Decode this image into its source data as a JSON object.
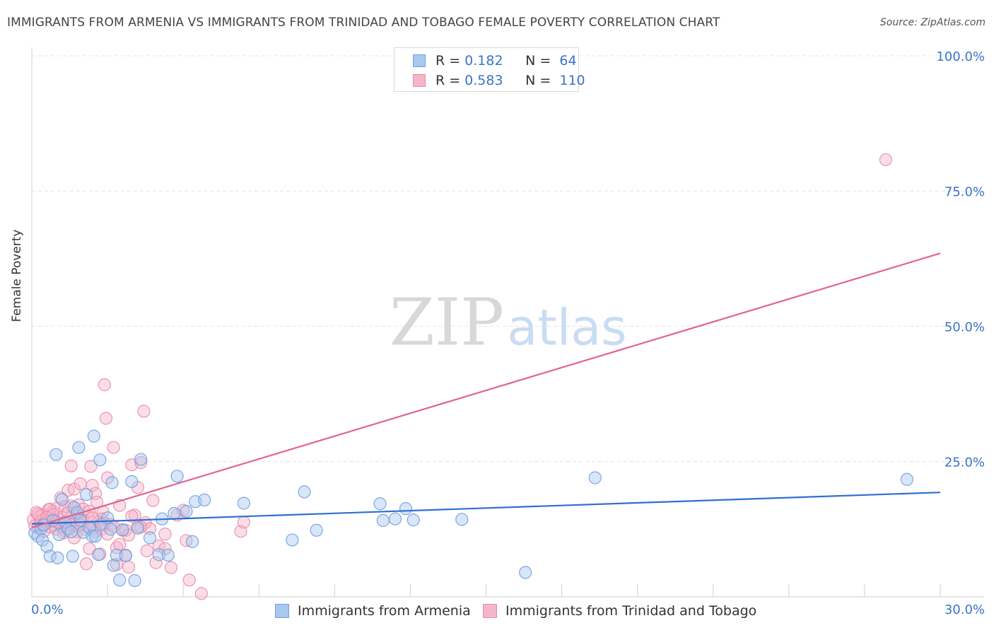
{
  "header": {
    "title": "IMMIGRANTS FROM ARMENIA VS IMMIGRANTS FROM TRINIDAD AND TOBAGO FEMALE POVERTY CORRELATION CHART",
    "source": "Source: ZipAtlas.com"
  },
  "legend": {
    "r_label": "R =",
    "n_label": "N =",
    "series": [
      {
        "name": "Immigrants from Armenia",
        "r": "0.182",
        "n": "64"
      },
      {
        "name": "Immigrants from Trinidad and Tobago",
        "r": "0.583",
        "n": "110"
      }
    ]
  },
  "watermark": {
    "zip": "ZIP",
    "atlas": "atlas"
  },
  "colors": {
    "armenia_fill": "#a8c8f0",
    "armenia_stroke": "#6f9fe0",
    "armenia_line": "#2f6fd0",
    "trinidad_fill": "#f5b6c9",
    "trinidad_stroke": "#ec8aa8",
    "trinidad_line": "#e0648e",
    "tick_text": "#3b73c9",
    "grid": "#e3e3e3"
  },
  "chart_data": {
    "type": "scatter",
    "title": "IMMIGRANTS FROM ARMENIA VS IMMIGRANTS FROM TRINIDAD AND TOBAGO FEMALE POVERTY CORRELATION CHART",
    "xlabel": "",
    "ylabel": "Female Poverty",
    "xlim": [
      0,
      30
    ],
    "ylim": [
      0,
      100
    ],
    "x_tick_labels": [
      "0.0%",
      "30.0%"
    ],
    "y_ticks": [
      25,
      50,
      75,
      100
    ],
    "y_tick_labels": [
      "25.0%",
      "50.0%",
      "75.0%",
      "100.0%"
    ],
    "grid": true,
    "series": [
      {
        "name": "Immigrants from Armenia",
        "trend": [
          [
            0,
            13.5
          ],
          [
            30,
            19.3
          ]
        ],
        "points": [
          [
            0.1,
            11.8
          ],
          [
            0.2,
            11.2
          ],
          [
            0.3,
            12.6
          ],
          [
            0.35,
            10.5
          ],
          [
            0.4,
            13.3
          ],
          [
            0.5,
            9.3
          ],
          [
            0.6,
            7.5
          ],
          [
            0.7,
            14.1
          ],
          [
            0.8,
            26.3
          ],
          [
            0.85,
            7.2
          ],
          [
            0.9,
            11.5
          ],
          [
            1.0,
            18.0
          ],
          [
            1.1,
            13.8
          ],
          [
            1.2,
            12.5
          ],
          [
            1.3,
            12.0
          ],
          [
            1.35,
            7.5
          ],
          [
            1.4,
            16.5
          ],
          [
            1.5,
            15.6
          ],
          [
            1.55,
            27.6
          ],
          [
            1.6,
            14.1
          ],
          [
            1.7,
            11.9
          ],
          [
            1.8,
            18.9
          ],
          [
            1.9,
            12.8
          ],
          [
            2.0,
            11.2
          ],
          [
            2.05,
            29.7
          ],
          [
            2.1,
            11.2
          ],
          [
            2.2,
            7.8
          ],
          [
            2.25,
            25.3
          ],
          [
            2.3,
            13.4
          ],
          [
            2.5,
            14.6
          ],
          [
            2.6,
            12.5
          ],
          [
            2.65,
            21.1
          ],
          [
            2.7,
            5.8
          ],
          [
            2.8,
            7.7
          ],
          [
            2.9,
            3.1
          ],
          [
            3.0,
            12.4
          ],
          [
            3.1,
            7.6
          ],
          [
            3.3,
            21.3
          ],
          [
            3.4,
            3.0
          ],
          [
            3.5,
            12.7
          ],
          [
            3.6,
            25.4
          ],
          [
            3.9,
            10.9
          ],
          [
            4.2,
            7.8
          ],
          [
            4.3,
            14.4
          ],
          [
            4.5,
            7.7
          ],
          [
            4.7,
            15.4
          ],
          [
            4.8,
            22.3
          ],
          [
            5.1,
            15.8
          ],
          [
            5.3,
            10.2
          ],
          [
            5.4,
            17.6
          ],
          [
            5.7,
            17.9
          ],
          [
            7.0,
            17.3
          ],
          [
            8.6,
            10.5
          ],
          [
            9.0,
            19.4
          ],
          [
            9.4,
            12.3
          ],
          [
            11.5,
            17.2
          ],
          [
            11.6,
            14.1
          ],
          [
            12.0,
            14.4
          ],
          [
            12.35,
            16.3
          ],
          [
            12.6,
            14.2
          ],
          [
            14.2,
            14.3
          ],
          [
            16.3,
            4.5
          ],
          [
            18.6,
            22.0
          ],
          [
            28.9,
            21.7
          ]
        ]
      },
      {
        "name": "Immigrants from Trinidad and Tobago",
        "trend": [
          [
            0,
            12.8
          ],
          [
            30,
            63.5
          ]
        ],
        "points": [
          [
            0.05,
            14.2
          ],
          [
            0.1,
            13.1
          ],
          [
            0.15,
            15.6
          ],
          [
            0.2,
            12.8
          ],
          [
            0.25,
            14.9
          ],
          [
            0.3,
            13.5
          ],
          [
            0.35,
            15.2
          ],
          [
            0.4,
            12.1
          ],
          [
            0.45,
            14.6
          ],
          [
            0.5,
            13.8
          ],
          [
            0.55,
            16.1
          ],
          [
            0.6,
            12.9
          ],
          [
            0.65,
            14.0
          ],
          [
            0.7,
            15.8
          ],
          [
            0.75,
            13.2
          ],
          [
            0.8,
            12.5
          ],
          [
            0.85,
            16.4
          ],
          [
            0.9,
            14.3
          ],
          [
            0.95,
            18.3
          ],
          [
            1.0,
            13.0
          ],
          [
            1.05,
            11.8
          ],
          [
            1.1,
            16.7
          ],
          [
            1.15,
            12.7
          ],
          [
            1.2,
            19.7
          ],
          [
            1.25,
            14.5
          ],
          [
            1.3,
            24.2
          ],
          [
            1.35,
            13.4
          ],
          [
            1.4,
            19.9
          ],
          [
            1.45,
            15.3
          ],
          [
            1.5,
            12.0
          ],
          [
            1.55,
            17.0
          ],
          [
            1.6,
            20.9
          ],
          [
            1.65,
            13.6
          ],
          [
            1.7,
            16.2
          ],
          [
            1.75,
            12.5
          ],
          [
            1.8,
            6.1
          ],
          [
            1.85,
            14.8
          ],
          [
            1.9,
            8.9
          ],
          [
            1.95,
            24.1
          ],
          [
            2.0,
            20.6
          ],
          [
            2.05,
            12.6
          ],
          [
            2.1,
            19.1
          ],
          [
            2.15,
            17.5
          ],
          [
            2.2,
            13.9
          ],
          [
            2.25,
            7.9
          ],
          [
            2.3,
            12.5
          ],
          [
            2.35,
            15.7
          ],
          [
            2.4,
            39.2
          ],
          [
            2.45,
            33.0
          ],
          [
            2.5,
            22.0
          ],
          [
            2.6,
            13.4
          ],
          [
            2.7,
            27.6
          ],
          [
            2.8,
            9.1
          ],
          [
            2.9,
            16.9
          ],
          [
            3.0,
            12.3
          ],
          [
            3.1,
            7.7
          ],
          [
            3.2,
            5.5
          ],
          [
            3.3,
            24.4
          ],
          [
            3.4,
            15.1
          ],
          [
            3.5,
            20.2
          ],
          [
            3.6,
            24.8
          ],
          [
            3.7,
            34.3
          ],
          [
            3.75,
            13.7
          ],
          [
            3.8,
            8.5
          ],
          [
            3.9,
            12.6
          ],
          [
            4.0,
            17.8
          ],
          [
            4.1,
            6.3
          ],
          [
            4.2,
            9.4
          ],
          [
            4.4,
            11.6
          ],
          [
            4.6,
            5.4
          ],
          [
            4.8,
            15.1
          ],
          [
            5.0,
            16.0
          ],
          [
            5.1,
            10.4
          ],
          [
            5.2,
            3.1
          ],
          [
            5.6,
            0.6
          ],
          [
            6.9,
            12.1
          ],
          [
            7.0,
            13.8
          ],
          [
            1.9,
            12.9
          ],
          [
            1.0,
            14.7
          ],
          [
            0.6,
            16.2
          ],
          [
            0.3,
            14.0
          ],
          [
            0.4,
            13.4
          ],
          [
            0.7,
            15.2
          ],
          [
            0.9,
            13.6
          ],
          [
            1.1,
            12.2
          ],
          [
            1.3,
            16.8
          ],
          [
            1.5,
            13.1
          ],
          [
            1.7,
            14.1
          ],
          [
            1.9,
            15.8
          ],
          [
            2.1,
            12.0
          ],
          [
            2.3,
            14.4
          ],
          [
            2.5,
            11.6
          ],
          [
            2.7,
            13.0
          ],
          [
            2.9,
            9.7
          ],
          [
            3.1,
            12.3
          ],
          [
            3.3,
            14.9
          ],
          [
            3.5,
            13.0
          ],
          [
            0.2,
            15.3
          ],
          [
            0.5,
            14.7
          ],
          [
            0.8,
            13.9
          ],
          [
            1.2,
            15.5
          ],
          [
            1.6,
            13.3
          ],
          [
            2.0,
            14.6
          ],
          [
            2.4,
            13.6
          ],
          [
            2.8,
            6.0
          ],
          [
            3.2,
            11.4
          ],
          [
            3.6,
            12.9
          ],
          [
            4.4,
            8.9
          ],
          [
            1.4,
            10.9
          ],
          [
            28.2,
            80.8
          ]
        ]
      }
    ]
  }
}
